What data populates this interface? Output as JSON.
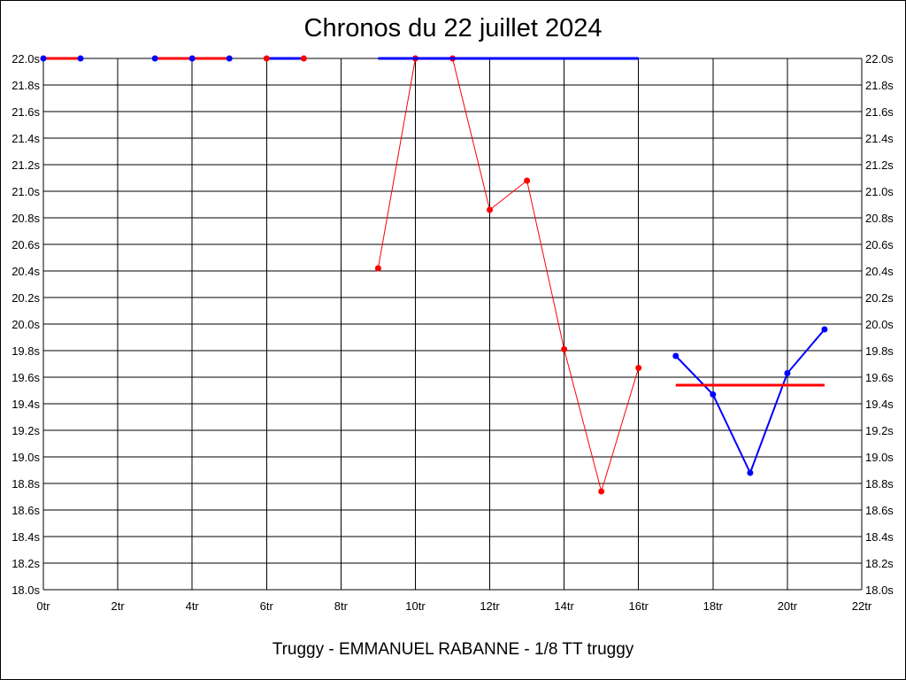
{
  "title": "Chronos du 22 juillet 2024",
  "subtitle": "Truggy - EMMANUEL RABANNE - 1/8 TT truggy",
  "chart_data": {
    "type": "line",
    "title": "Chronos du 22 juillet 2024",
    "xlabel": "",
    "ylabel": "",
    "xlim": [
      0,
      22
    ],
    "ylim": [
      18.0,
      22.0
    ],
    "grid": true,
    "x_ticks": [
      "0tr",
      "2tr",
      "4tr",
      "6tr",
      "8tr",
      "10tr",
      "12tr",
      "14tr",
      "16tr",
      "18tr",
      "20tr",
      "22tr"
    ],
    "y_ticks": [
      "22.0s",
      "21.8s",
      "21.6s",
      "21.4s",
      "21.2s",
      "21.0s",
      "20.8s",
      "20.6s",
      "20.4s",
      "20.2s",
      "20.0s",
      "19.8s",
      "19.6s",
      "19.4s",
      "19.2s",
      "19.0s",
      "18.8s",
      "18.6s",
      "18.4s",
      "18.2s",
      "18.0s"
    ],
    "series": [
      {
        "color": "#ff0000",
        "marker_color": "#0000ff",
        "width": 3,
        "points": [
          [
            0,
            22.0
          ],
          [
            1,
            22.0
          ]
        ]
      },
      {
        "color": "#ff0000",
        "marker_color": "#0000ff",
        "width": 3,
        "points": [
          [
            3,
            22.0
          ],
          [
            4,
            22.0
          ],
          [
            5,
            22.0
          ]
        ]
      },
      {
        "color": "#0000ff",
        "marker_color": "#ff0000",
        "width": 3,
        "points": [
          [
            6,
            22.0
          ],
          [
            7,
            22.0
          ]
        ]
      },
      {
        "color": "#ff0000",
        "marker_color": "#ff0000",
        "width": 1,
        "points": [
          [
            9,
            20.42
          ],
          [
            10,
            22.0
          ],
          [
            11,
            22.0
          ],
          [
            12,
            20.86
          ],
          [
            13,
            21.08
          ],
          [
            14,
            19.81
          ],
          [
            15,
            18.74
          ],
          [
            16,
            19.67
          ]
        ]
      },
      {
        "color": "#0000ff",
        "marker_color": null,
        "width": 3,
        "points": [
          [
            9,
            22.0
          ],
          [
            16,
            22.0
          ]
        ]
      },
      {
        "color": "#0000ff",
        "marker_color": "#0000ff",
        "width": 2,
        "points": [
          [
            17,
            19.76
          ],
          [
            18,
            19.47
          ],
          [
            19,
            18.88
          ],
          [
            20,
            19.63
          ],
          [
            21,
            19.96
          ]
        ]
      },
      {
        "color": "#ff0000",
        "marker_color": null,
        "width": 3,
        "points": [
          [
            17,
            19.54
          ],
          [
            21,
            19.54
          ]
        ]
      }
    ]
  }
}
